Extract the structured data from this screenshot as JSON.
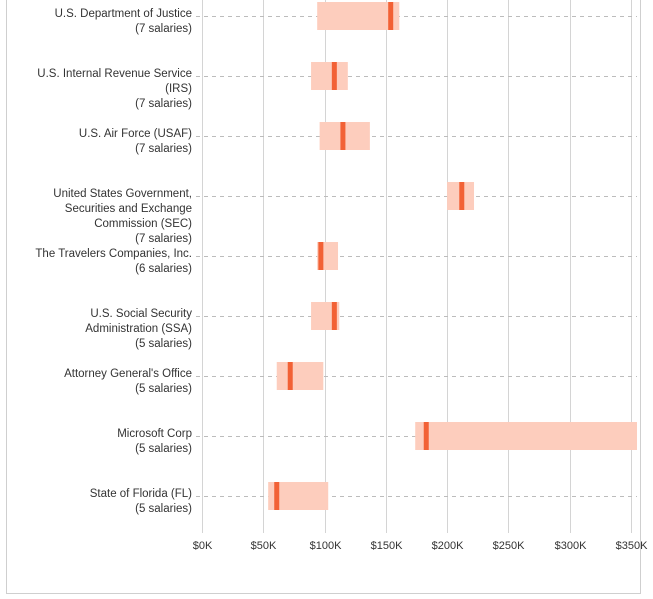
{
  "chart_data": {
    "type": "range",
    "title": "",
    "xlabel": "",
    "ylabel": "",
    "xlim": [
      0,
      355000
    ],
    "x_ticks": [
      0,
      50000,
      100000,
      150000,
      200000,
      250000,
      300000,
      350000
    ],
    "x_tick_labels": [
      "$0K",
      "$50K",
      "$100K",
      "$150K",
      "$200K",
      "$250K",
      "$300K",
      "$350K"
    ],
    "grid": true,
    "range_color": "#fdcdbd",
    "median_color": "#f26135",
    "categories": [
      {
        "lines": [
          "U.S. Department of Justice",
          "(7 salaries)"
        ],
        "low": 94000,
        "high": 161000,
        "median": 154000
      },
      {
        "lines": [
          "U.S. Internal Revenue Service",
          "(IRS)",
          "(7 salaries)"
        ],
        "low": 89000,
        "high": 119000,
        "median": 108000
      },
      {
        "lines": [
          "U.S. Air Force (USAF)",
          "(7 salaries)"
        ],
        "low": 96000,
        "high": 137000,
        "median": 115000
      },
      {
        "lines": [
          "United States Government,",
          "Securities and Exchange",
          "Commission (SEC)",
          "(7 salaries)"
        ],
        "low": 200000,
        "high": 222000,
        "median": 212000
      },
      {
        "lines": [
          "The Travelers Companies, Inc.",
          "(6 salaries)"
        ],
        "low": 94000,
        "high": 111000,
        "median": 97000
      },
      {
        "lines": [
          "U.S. Social Security",
          "Administration (SSA)",
          "(5 salaries)"
        ],
        "low": 89000,
        "high": 112000,
        "median": 108000
      },
      {
        "lines": [
          "Attorney General's Office",
          "(5 salaries)"
        ],
        "low": 61000,
        "high": 99000,
        "median": 72000
      },
      {
        "lines": [
          "Microsoft Corp",
          "(5 salaries)"
        ],
        "low": 174000,
        "high": 355000,
        "median": 183000
      },
      {
        "lines": [
          "State of Florida (FL)",
          "(5 salaries)"
        ],
        "low": 54000,
        "high": 103000,
        "median": 61000
      }
    ]
  }
}
